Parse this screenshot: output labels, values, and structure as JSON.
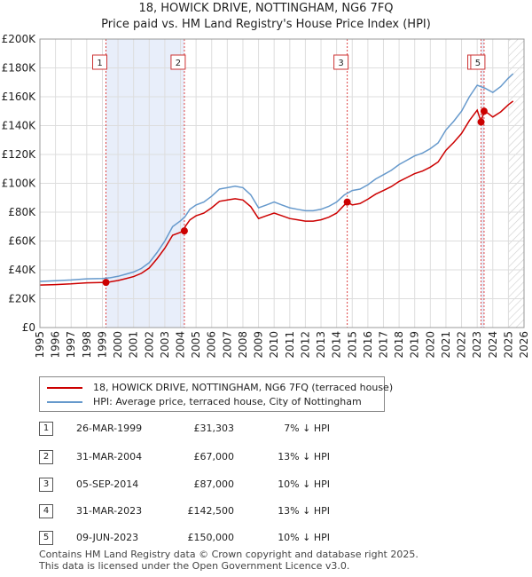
{
  "title": "18, HOWICK DRIVE, NOTTINGHAM, NG6 7FQ",
  "subtitle": "Price paid vs. HM Land Registry's House Price Index (HPI)",
  "chart_data": {
    "type": "line",
    "xlim": [
      1995,
      2026
    ],
    "ylim": [
      0,
      200000
    ],
    "x_ticks": [
      1995,
      1996,
      1997,
      1998,
      1999,
      2000,
      2001,
      2002,
      2003,
      2004,
      2005,
      2006,
      2007,
      2008,
      2009,
      2010,
      2011,
      2012,
      2013,
      2014,
      2015,
      2016,
      2017,
      2018,
      2019,
      2020,
      2021,
      2022,
      2023,
      2024,
      2025,
      2026
    ],
    "x_tick_labels": [
      "1995",
      "1996",
      "1997",
      "1998",
      "1999",
      "2000",
      "2001",
      "2002",
      "2003",
      "2004",
      "2005",
      "2006",
      "2007",
      "2008",
      "2009",
      "2010",
      "2011",
      "2012",
      "2013",
      "2014",
      "2015",
      "2016",
      "2017",
      "2018",
      "2019",
      "2020",
      "2021",
      "2022",
      "2023",
      "2024",
      "2025",
      "2026"
    ],
    "y_ticks": [
      0,
      20000,
      40000,
      60000,
      80000,
      100000,
      120000,
      140000,
      160000,
      180000,
      200000
    ],
    "y_tick_labels": [
      "£0",
      "£20K",
      "£40K",
      "£60K",
      "£80K",
      "£100K",
      "£120K",
      "£140K",
      "£160K",
      "£180K",
      "£200K"
    ],
    "hpi_series": {
      "name": "HPI: Average price, terraced house, City of Nottingham",
      "color": "#6699cc",
      "points": [
        [
          1995.0,
          32000
        ],
        [
          1996.0,
          32500
        ],
        [
          1997.0,
          33000
        ],
        [
          1998.0,
          33800
        ],
        [
          1999.0,
          34000
        ],
        [
          1999.5,
          34500
        ],
        [
          2000.0,
          35500
        ],
        [
          2000.5,
          37000
        ],
        [
          2001.0,
          38500
        ],
        [
          2001.5,
          41000
        ],
        [
          2002.0,
          45000
        ],
        [
          2002.5,
          52000
        ],
        [
          2003.0,
          60000
        ],
        [
          2003.5,
          70000
        ],
        [
          2004.0,
          74000
        ],
        [
          2004.3,
          77000
        ],
        [
          2004.6,
          82000
        ],
        [
          2005.0,
          85000
        ],
        [
          2005.5,
          87000
        ],
        [
          2006.0,
          91000
        ],
        [
          2006.5,
          96000
        ],
        [
          2007.0,
          97000
        ],
        [
          2007.5,
          98000
        ],
        [
          2008.0,
          97000
        ],
        [
          2008.5,
          92000
        ],
        [
          2009.0,
          83000
        ],
        [
          2009.5,
          85000
        ],
        [
          2010.0,
          87000
        ],
        [
          2010.5,
          85000
        ],
        [
          2011.0,
          83000
        ],
        [
          2011.5,
          82000
        ],
        [
          2012.0,
          81000
        ],
        [
          2012.5,
          81000
        ],
        [
          2013.0,
          82000
        ],
        [
          2013.5,
          84000
        ],
        [
          2014.0,
          87000
        ],
        [
          2014.5,
          92000
        ],
        [
          2015.0,
          95000
        ],
        [
          2015.5,
          96000
        ],
        [
          2016.0,
          99000
        ],
        [
          2016.5,
          103000
        ],
        [
          2017.0,
          106000
        ],
        [
          2017.5,
          109000
        ],
        [
          2018.0,
          113000
        ],
        [
          2018.5,
          116000
        ],
        [
          2019.0,
          119000
        ],
        [
          2019.5,
          121000
        ],
        [
          2020.0,
          124000
        ],
        [
          2020.5,
          128000
        ],
        [
          2021.0,
          137000
        ],
        [
          2021.5,
          143000
        ],
        [
          2022.0,
          150000
        ],
        [
          2022.5,
          160000
        ],
        [
          2023.0,
          168000
        ],
        [
          2023.5,
          166000
        ],
        [
          2024.0,
          163000
        ],
        [
          2024.5,
          167000
        ],
        [
          2025.0,
          173000
        ],
        [
          2025.3,
          176000
        ]
      ]
    },
    "price_series": {
      "name": "18, HOWICK DRIVE, NOTTINGHAM, NG6 7FQ (terraced house)",
      "color": "#cc0000",
      "points": [
        [
          1995.0,
          29500
        ],
        [
          1996.0,
          29800
        ],
        [
          1997.0,
          30300
        ],
        [
          1998.0,
          31000
        ],
        [
          1999.23,
          31303
        ],
        [
          1999.5,
          31700
        ],
        [
          2000.0,
          32600
        ],
        [
          2000.5,
          33900
        ],
        [
          2001.0,
          35300
        ],
        [
          2001.5,
          37600
        ],
        [
          2002.0,
          41300
        ],
        [
          2002.5,
          47700
        ],
        [
          2003.0,
          55000
        ],
        [
          2003.5,
          64000
        ],
        [
          2004.25,
          67000
        ],
        [
          2004.3,
          70000
        ],
        [
          2004.6,
          74600
        ],
        [
          2005.0,
          77500
        ],
        [
          2005.5,
          79300
        ],
        [
          2006.0,
          83000
        ],
        [
          2006.5,
          87500
        ],
        [
          2007.0,
          88400
        ],
        [
          2007.5,
          89300
        ],
        [
          2008.0,
          88400
        ],
        [
          2008.5,
          83800
        ],
        [
          2009.0,
          75600
        ],
        [
          2009.5,
          77500
        ],
        [
          2010.0,
          79300
        ],
        [
          2010.5,
          77500
        ],
        [
          2011.0,
          75600
        ],
        [
          2011.5,
          74700
        ],
        [
          2012.0,
          73800
        ],
        [
          2012.5,
          73800
        ],
        [
          2013.0,
          74700
        ],
        [
          2013.5,
          76500
        ],
        [
          2014.0,
          79300
        ],
        [
          2014.68,
          87000
        ],
        [
          2015.0,
          85000
        ],
        [
          2015.5,
          86000
        ],
        [
          2016.0,
          89000
        ],
        [
          2016.5,
          92500
        ],
        [
          2017.0,
          95000
        ],
        [
          2017.5,
          97700
        ],
        [
          2018.0,
          101300
        ],
        [
          2018.5,
          104000
        ],
        [
          2019.0,
          106700
        ],
        [
          2019.5,
          108500
        ],
        [
          2020.0,
          111200
        ],
        [
          2020.5,
          114800
        ],
        [
          2021.0,
          122900
        ],
        [
          2021.5,
          128300
        ],
        [
          2022.0,
          134500
        ],
        [
          2022.5,
          143500
        ],
        [
          2023.0,
          150700
        ],
        [
          2023.25,
          142500
        ],
        [
          2023.44,
          150000
        ],
        [
          2023.7,
          148500
        ],
        [
          2024.0,
          146000
        ],
        [
          2024.5,
          149500
        ],
        [
          2025.0,
          154500
        ],
        [
          2025.3,
          157000
        ]
      ]
    },
    "sales": [
      {
        "label": "1",
        "x": 1999.23,
        "price": 31303
      },
      {
        "label": "2",
        "x": 2004.25,
        "price": 67000
      },
      {
        "label": "3",
        "x": 2014.68,
        "price": 87000
      },
      {
        "label": "4",
        "x": 2023.25,
        "price": 142500
      },
      {
        "label": "5",
        "x": 2023.44,
        "price": 150000
      }
    ],
    "shaded_periods": [
      [
        1999.23,
        2004.25
      ],
      [
        2023.25,
        2023.44
      ]
    ],
    "future_hatch_from": 2025.0
  },
  "legend": {
    "price_label": "18, HOWICK DRIVE, NOTTINGHAM, NG6 7FQ (terraced house)",
    "hpi_label": "HPI: Average price, terraced house, City of Nottingham",
    "price_color": "#cc0000",
    "hpi_color": "#6699cc"
  },
  "transactions": [
    {
      "num": "1",
      "date": "26-MAR-1999",
      "price": "£31,303",
      "hpi": "7% ↓ HPI"
    },
    {
      "num": "2",
      "date": "31-MAR-2004",
      "price": "£67,000",
      "hpi": "13% ↓ HPI"
    },
    {
      "num": "3",
      "date": "05-SEP-2014",
      "price": "£87,000",
      "hpi": "10% ↓ HPI"
    },
    {
      "num": "4",
      "date": "31-MAR-2023",
      "price": "£142,500",
      "hpi": "13% ↓ HPI"
    },
    {
      "num": "5",
      "date": "09-JUN-2023",
      "price": "£150,000",
      "hpi": "10% ↓ HPI"
    }
  ],
  "footer": {
    "line1": "Contains HM Land Registry data © Crown copyright and database right 2025.",
    "line2": "This data is licensed under the Open Government Licence v3.0."
  }
}
